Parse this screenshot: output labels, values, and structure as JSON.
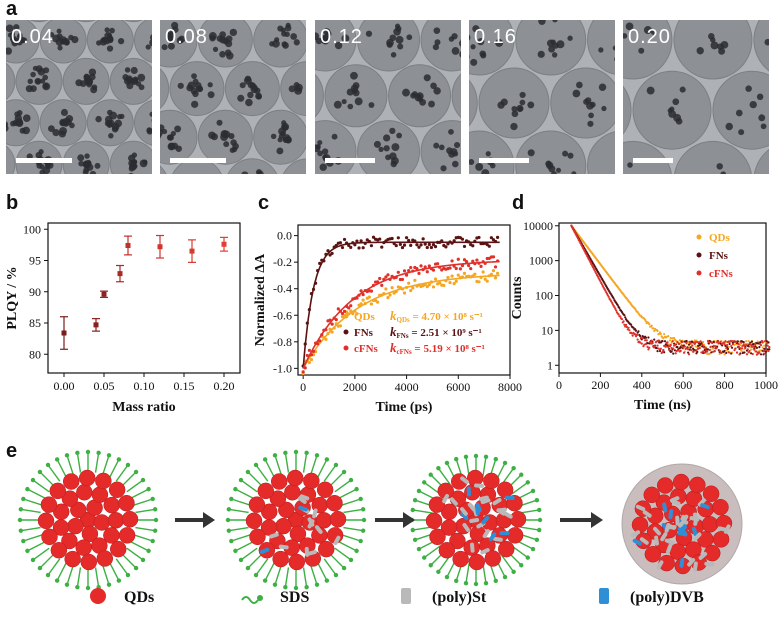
{
  "panel_letters": {
    "a": "a",
    "b": "b",
    "c": "c",
    "d": "d",
    "e": "e"
  },
  "panel_a": {
    "images": [
      {
        "label": "0.04"
      },
      {
        "label": "0.08"
      },
      {
        "label": "0.12"
      },
      {
        "label": "0.16"
      },
      {
        "label": "0.20"
      }
    ],
    "colors": {
      "background": "#aeb1b5",
      "sphere": "#8d9094",
      "dot": "#2a2d31"
    }
  },
  "chart_data": [
    {
      "panel": "b",
      "type": "scatter",
      "xlabel": "Mass ratio",
      "ylabel": "PLQY / %",
      "xlim": [
        -0.02,
        0.22
      ],
      "ylim": [
        77,
        101
      ],
      "xticks": [
        "0.00",
        "0.05",
        "0.10",
        "0.15",
        "0.20"
      ],
      "yticks": [
        "80",
        "85",
        "90",
        "95",
        "100"
      ],
      "points": [
        {
          "x": 0.0,
          "y": 83.4,
          "err": 2.6,
          "color": "#7a1c1c"
        },
        {
          "x": 0.04,
          "y": 84.7,
          "err": 1.0,
          "color": "#8a1f1f"
        },
        {
          "x": 0.05,
          "y": 89.6,
          "err": 0.5,
          "color": "#8c2222"
        },
        {
          "x": 0.07,
          "y": 92.9,
          "err": 1.3,
          "color": "#a82a25"
        },
        {
          "x": 0.08,
          "y": 97.4,
          "err": 1.5,
          "color": "#c0302a"
        },
        {
          "x": 0.12,
          "y": 97.2,
          "err": 1.8,
          "color": "#d0362e"
        },
        {
          "x": 0.16,
          "y": 96.5,
          "err": 1.8,
          "color": "#d83a30"
        },
        {
          "x": 0.2,
          "y": 97.6,
          "err": 1.1,
          "color": "#e23d31"
        }
      ]
    },
    {
      "panel": "c",
      "type": "scatter",
      "xlabel": "Time (ps)",
      "ylabel": "Normalized ΔA",
      "xlim": [
        -200,
        8000
      ],
      "ylim": [
        -1.05,
        0.08
      ],
      "xticks": [
        "0",
        "2000",
        "4000",
        "6000",
        "8000"
      ],
      "yticks": [
        "0.0",
        "-0.2",
        "-0.4",
        "-0.6",
        "-0.8",
        "-1.0"
      ],
      "series": [
        {
          "name": "QDs",
          "color": "#f5a623",
          "k_label": "k",
          "k_sub": "QDs",
          "k_value": "= 4.70 × 10⁸ s⁻¹",
          "k": 0.00047,
          "baseline": -0.28
        },
        {
          "name": "FNs",
          "color": "#5a1212",
          "k_label": "k",
          "k_sub": "FNs",
          "k_value": "= 2.51 × 10⁹ s⁻¹",
          "k": 0.00251,
          "baseline": -0.05
        },
        {
          "name": "cFNs",
          "color": "#e0302a",
          "k_label": "k",
          "k_sub": "cFNs",
          "k_value": "= 5.19 × 10⁸ s⁻¹",
          "k": 0.00052,
          "baseline": -0.18
        }
      ]
    },
    {
      "panel": "d",
      "type": "scatter",
      "xlabel": "Time (ns)",
      "ylabel": "Counts",
      "xlim": [
        0,
        1000
      ],
      "ylim": [
        0.6,
        12000
      ],
      "log_y": true,
      "xticks": [
        "0",
        "200",
        "400",
        "600",
        "800",
        "1000"
      ],
      "yticks": [
        "1",
        "10",
        "100",
        "1000",
        "10000"
      ],
      "series": [
        {
          "name": "QDs",
          "color": "#f5a623"
        },
        {
          "name": "FNs",
          "color": "#5a1212"
        },
        {
          "name": "cFNs",
          "color": "#e0302a"
        }
      ]
    }
  ],
  "panel_e": {
    "legend": [
      {
        "label": "QDs",
        "icon": "red-sphere-icon"
      },
      {
        "label": "SDS",
        "icon": "green-chain-icon"
      },
      {
        "label": "(poly)St",
        "icon": "gray-cylinder-icon"
      },
      {
        "label": "(poly)DVB",
        "icon": "blue-cylinder-icon"
      }
    ],
    "colors": {
      "qd": "#e52a2a",
      "sds": "#3cb043",
      "st": "#b9b9b9",
      "dvb": "#2f8fd6",
      "arrow": "#333333",
      "shell": "#c9bdbd"
    }
  }
}
